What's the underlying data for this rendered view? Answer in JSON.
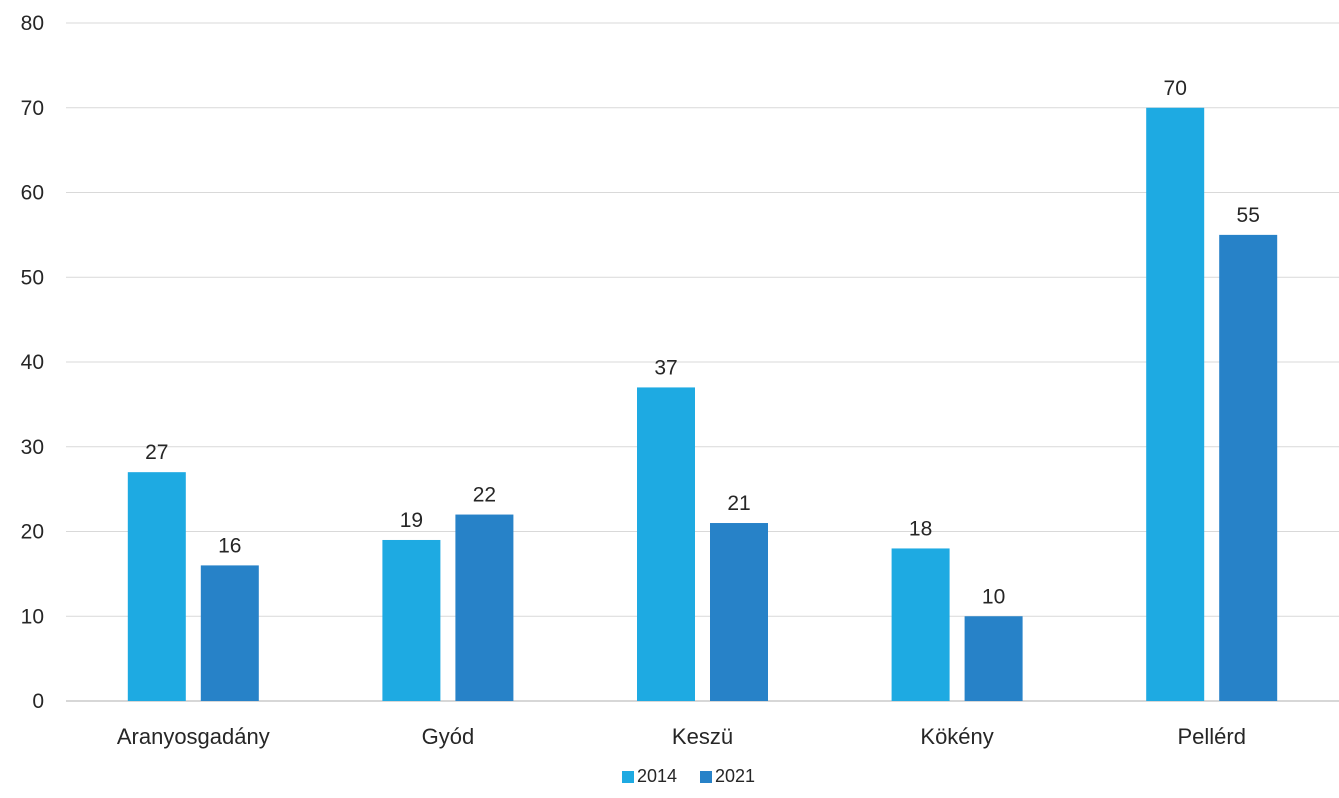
{
  "chart_data": {
    "type": "bar",
    "title": "",
    "xlabel": "",
    "ylabel": "",
    "categories": [
      "Aranyosgadány",
      "Gyód",
      "Keszü",
      "Kökény",
      "Pellérd"
    ],
    "series": [
      {
        "name": "2014",
        "color": "#1eaae2",
        "values": [
          27,
          19,
          37,
          18,
          70
        ]
      },
      {
        "name": "2021",
        "color": "#2782c8",
        "values": [
          16,
          22,
          21,
          10,
          55
        ]
      }
    ],
    "ylim": [
      0,
      80
    ],
    "yticks": [
      0,
      10,
      20,
      30,
      40,
      50,
      60,
      70,
      80
    ],
    "grid": true,
    "data_labels": true,
    "legend_position": "bottom"
  }
}
